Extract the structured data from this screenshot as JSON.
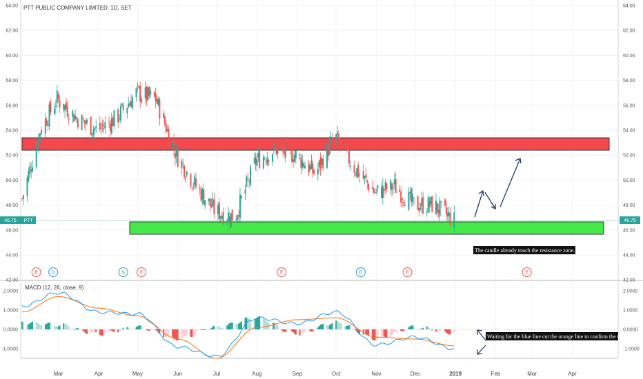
{
  "chart": {
    "title": "PTT PUBLIC COMPANY LIMITED, 1D, SET",
    "symbol": "PTT",
    "last_price": "46.75",
    "price_ticks": [
      "64.00",
      "62.00",
      "60.00",
      "58.00",
      "56.00",
      "54.00",
      "52.00",
      "50.00",
      "48.00",
      "46.00",
      "44.00",
      "42.00"
    ],
    "macd_label": "MACD (12, 26, close, 9)",
    "macd_ticks": [
      "2.0000",
      "1.0000",
      "0.0000",
      "-1.0000"
    ],
    "months": [
      "Mar",
      "Apr",
      "May",
      "Jun",
      "Jul",
      "Aug",
      "Sep",
      "Oct",
      "Nov",
      "Dec",
      "2019",
      "Feb",
      "Mar",
      "Apr"
    ],
    "events": [
      "E",
      "D",
      "S",
      "E",
      "E",
      "D",
      "E",
      "E"
    ],
    "colors": {
      "up": "#26a69a",
      "down": "#ef5350",
      "resistance_zone": "#f2484e",
      "support_zone": "#44e84a",
      "macd_line": "#2196f3",
      "signal_line": "#ff6d00",
      "arrow": "#1e3a5f",
      "annotation_bg": "#111111"
    }
  },
  "annotations": {
    "candle_note": "The candle already touch the resistance zone.",
    "macd_note": "Waiting for the blue line cut the orange line to confirm the t"
  },
  "chart_data": {
    "type": "candlestick",
    "title": "PTT PUBLIC COMPANY LIMITED, 1D, SET",
    "ylim": [
      42,
      64
    ],
    "x_range": [
      "2018-02-01",
      "2019-04-30"
    ],
    "zones": [
      {
        "name": "resistance",
        "from": 52.4,
        "to": 53.4
      },
      {
        "name": "support",
        "from": 45.6,
        "to": 46.6
      }
    ],
    "closes": [
      {
        "date": "2018-02-01",
        "close": 48.5
      },
      {
        "date": "2018-02-15",
        "close": 54.0
      },
      {
        "date": "2018-02-28",
        "close": 56.5
      },
      {
        "date": "2018-03-15",
        "close": 55.0
      },
      {
        "date": "2018-03-31",
        "close": 54.0
      },
      {
        "date": "2018-04-15",
        "close": 55.0
      },
      {
        "date": "2018-04-30",
        "close": 57.0
      },
      {
        "date": "2018-05-15",
        "close": 56.5
      },
      {
        "date": "2018-05-31",
        "close": 52.0
      },
      {
        "date": "2018-06-15",
        "close": 49.5
      },
      {
        "date": "2018-06-30",
        "close": 47.5
      },
      {
        "date": "2018-07-15",
        "close": 47.0
      },
      {
        "date": "2018-07-31",
        "close": 51.5
      },
      {
        "date": "2018-08-15",
        "close": 52.5
      },
      {
        "date": "2018-08-31",
        "close": 52.0
      },
      {
        "date": "2018-09-15",
        "close": 50.5
      },
      {
        "date": "2018-09-30",
        "close": 53.5
      },
      {
        "date": "2018-10-15",
        "close": 51.0
      },
      {
        "date": "2018-10-31",
        "close": 49.0
      },
      {
        "date": "2018-11-15",
        "close": 49.5
      },
      {
        "date": "2018-11-30",
        "close": 48.0
      },
      {
        "date": "2018-12-15",
        "close": 48.0
      },
      {
        "date": "2018-12-31",
        "close": 46.75
      }
    ],
    "projection": [
      {
        "date": "2019-01-05",
        "price": 46.9
      },
      {
        "date": "2019-01-12",
        "price": 48.3
      },
      {
        "date": "2019-01-22",
        "price": 47.4
      },
      {
        "date": "2019-02-10",
        "price": 51.9
      }
    ],
    "macd": {
      "ylim": [
        -1.6,
        2.2
      ],
      "series": [
        {
          "values_by_month": [
            {
              "date": "2018-02-01",
              "macd": 1.2,
              "signal": 0.9
            },
            {
              "date": "2018-03-01",
              "macd": 1.9,
              "signal": 1.7
            },
            {
              "date": "2018-04-01",
              "macd": 0.9,
              "signal": 1.1
            },
            {
              "date": "2018-05-01",
              "macd": 0.8,
              "signal": 0.7
            },
            {
              "date": "2018-06-01",
              "macd": -0.9,
              "signal": -0.5
            },
            {
              "date": "2018-07-01",
              "macd": -1.4,
              "signal": -1.5
            },
            {
              "date": "2018-08-01",
              "macd": 0.6,
              "signal": 0.1
            },
            {
              "date": "2018-09-01",
              "macd": 0.3,
              "signal": 0.5
            },
            {
              "date": "2018-10-01",
              "macd": 0.9,
              "signal": 0.6
            },
            {
              "date": "2018-11-01",
              "macd": -0.8,
              "signal": -0.4
            },
            {
              "date": "2018-12-01",
              "macd": -0.4,
              "signal": -0.5
            },
            {
              "date": "2018-12-31",
              "macd": -1.0,
              "signal": -0.85
            }
          ]
        }
      ]
    }
  }
}
